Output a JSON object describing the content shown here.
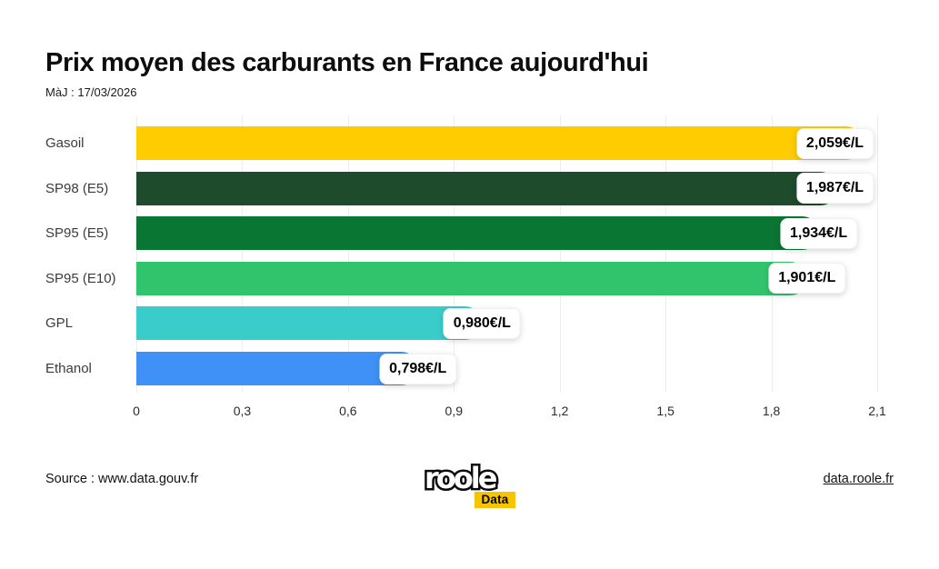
{
  "header": {
    "title": "Prix moyen des carburants en France aujourd'hui",
    "updated": "MàJ : 17/03/2026"
  },
  "chart_data": {
    "type": "bar",
    "orientation": "horizontal",
    "title": "Prix moyen des carburants en France aujourd'hui",
    "subtitle": "MàJ : 17/03/2026",
    "categories": [
      "Gasoil",
      "SP98 (E5)",
      "SP95 (E5)",
      "SP95 (E10)",
      "GPL",
      "Ethanol"
    ],
    "values": [
      2.059,
      1.987,
      1.934,
      1.901,
      0.98,
      0.798
    ],
    "value_labels": [
      "2,059€/L",
      "1,987€/L",
      "1,934€/L",
      "1,901€/L",
      "0,980€/L",
      "0,798€/L"
    ],
    "bar_colors": [
      "#fecc00",
      "#1d4b2c",
      "#0a7634",
      "#32c46d",
      "#39ccca",
      "#3f90f7"
    ],
    "x_ticks": [
      "0",
      "0,3",
      "0,6",
      "0,9",
      "1,2",
      "1,5",
      "1,8",
      "2,1"
    ],
    "x_tick_values": [
      0,
      0.3,
      0.6,
      0.9,
      1.2,
      1.5,
      1.8,
      2.1
    ],
    "xlim": [
      0,
      2.1
    ],
    "xlabel": "",
    "ylabel": "",
    "unit": "€/L",
    "grid": "vertical-only",
    "legend": "none"
  },
  "footer": {
    "source": "Source : www.data.gouv.fr",
    "link": "data.roole.fr",
    "logo_text": "roole",
    "logo_badge": "Data"
  },
  "colors": {
    "background": "#ffffff",
    "gridline": "#ededed",
    "badge_bg": "#ffffff",
    "logo_badge_bg": "#f6c500",
    "text": "#111111"
  }
}
